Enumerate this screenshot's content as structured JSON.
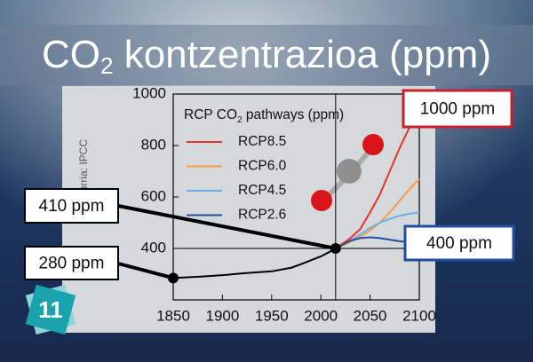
{
  "slide_title": {
    "text": "CO",
    "sub": "2",
    "rest": " kontzentrazioa (ppm)"
  },
  "source": "Iturria: IPCC",
  "badge": "11",
  "chart_data": {
    "type": "line",
    "legend_title": {
      "text": "RCP CO",
      "sub": "2",
      "rest": " pathways (ppm)"
    },
    "xlim": [
      1850,
      2100
    ],
    "xticks": [
      1850,
      1900,
      1950,
      2000,
      2050,
      2100
    ],
    "ylim": [
      200,
      1000
    ],
    "yticks": [
      400,
      600,
      800,
      1000
    ],
    "reference": {
      "x": 2015,
      "y": 400
    },
    "history": {
      "color": "#000000",
      "x": [
        1850,
        1880,
        1900,
        1920,
        1950,
        1970,
        1980,
        1990,
        2000,
        2010,
        2015
      ],
      "values": [
        285,
        291,
        296,
        303,
        311,
        325,
        339,
        354,
        369,
        389,
        400
      ]
    },
    "series": [
      {
        "name": "RCP8.5",
        "color": "#e8322b",
        "x": [
          2015,
          2030,
          2040,
          2050,
          2060,
          2070,
          2080,
          2090,
          2100
        ],
        "values": [
          400,
          440,
          475,
          540,
          610,
          700,
          790,
          870,
          936
        ]
      },
      {
        "name": "RCP6.0",
        "color": "#f59a4a",
        "x": [
          2015,
          2030,
          2040,
          2050,
          2060,
          2070,
          2080,
          2090,
          2100
        ],
        "values": [
          400,
          425,
          445,
          470,
          500,
          540,
          585,
          630,
          670
        ]
      },
      {
        "name": "RCP4.5",
        "color": "#6aaee8",
        "x": [
          2015,
          2030,
          2040,
          2050,
          2060,
          2070,
          2080,
          2090,
          2100
        ],
        "values": [
          400,
          430,
          455,
          480,
          500,
          515,
          527,
          535,
          540
        ]
      },
      {
        "name": "RCP2.6",
        "color": "#1f4f9e",
        "x": [
          2015,
          2030,
          2040,
          2050,
          2060,
          2070,
          2080,
          2090,
          2100
        ],
        "values": [
          400,
          430,
          440,
          443,
          440,
          434,
          428,
          424,
          421
        ]
      }
    ],
    "annotations": [
      {
        "text": "1000 ppm",
        "color": "#c8202a"
      },
      {
        "text": "410 ppm",
        "color": "#000000"
      },
      {
        "text": "280 ppm",
        "color": "#000000"
      },
      {
        "text": "400 ppm",
        "color": "#1f4f9e"
      }
    ]
  }
}
